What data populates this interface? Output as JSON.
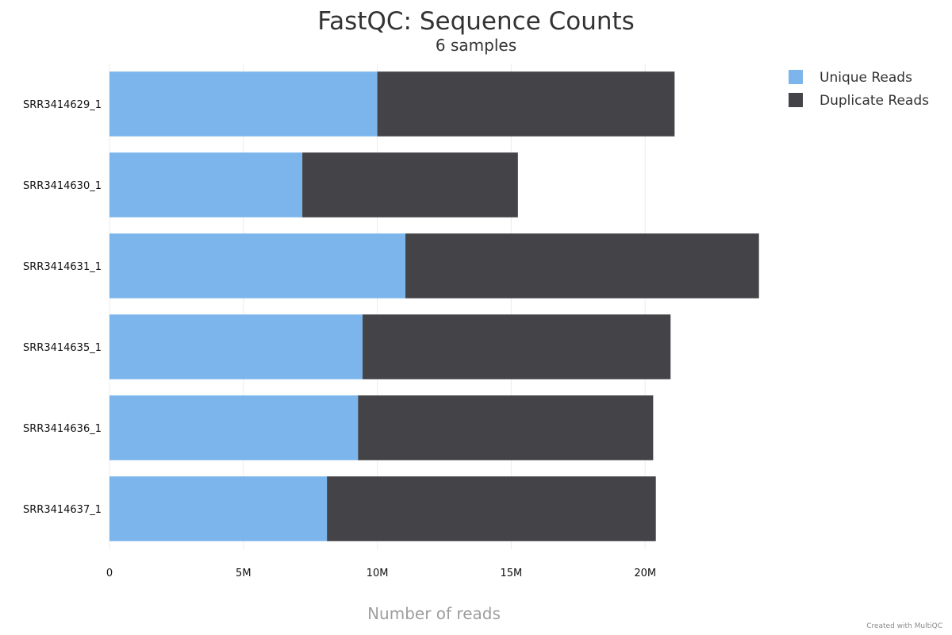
{
  "chart_data": {
    "type": "bar",
    "orientation": "horizontal",
    "stacked": true,
    "title": "FastQC: Sequence Counts",
    "subtitle": "6 samples",
    "xlabel": "Number of reads",
    "ylabel": "",
    "xlim": [
      0,
      25000000
    ],
    "x_ticks": [
      0,
      5000000,
      10000000,
      15000000,
      20000000
    ],
    "x_tick_labels": [
      "0",
      "5M",
      "10M",
      "15M",
      "20M"
    ],
    "grid": true,
    "legend_position": "top-right",
    "categories": [
      "SRR3414629_1",
      "SRR3414630_1",
      "SRR3414631_1",
      "SRR3414635_1",
      "SRR3414636_1",
      "SRR3414637_1"
    ],
    "series": [
      {
        "name": "Unique Reads",
        "color": "#7cb5ec",
        "values": [
          10000000,
          7200000,
          11050000,
          9450000,
          9280000,
          8120000
        ]
      },
      {
        "name": "Duplicate Reads",
        "color": "#434348",
        "values": [
          11100000,
          8050000,
          13200000,
          11500000,
          11020000,
          12280000
        ]
      }
    ]
  },
  "footer": {
    "credit": "Created with MultiQC"
  }
}
